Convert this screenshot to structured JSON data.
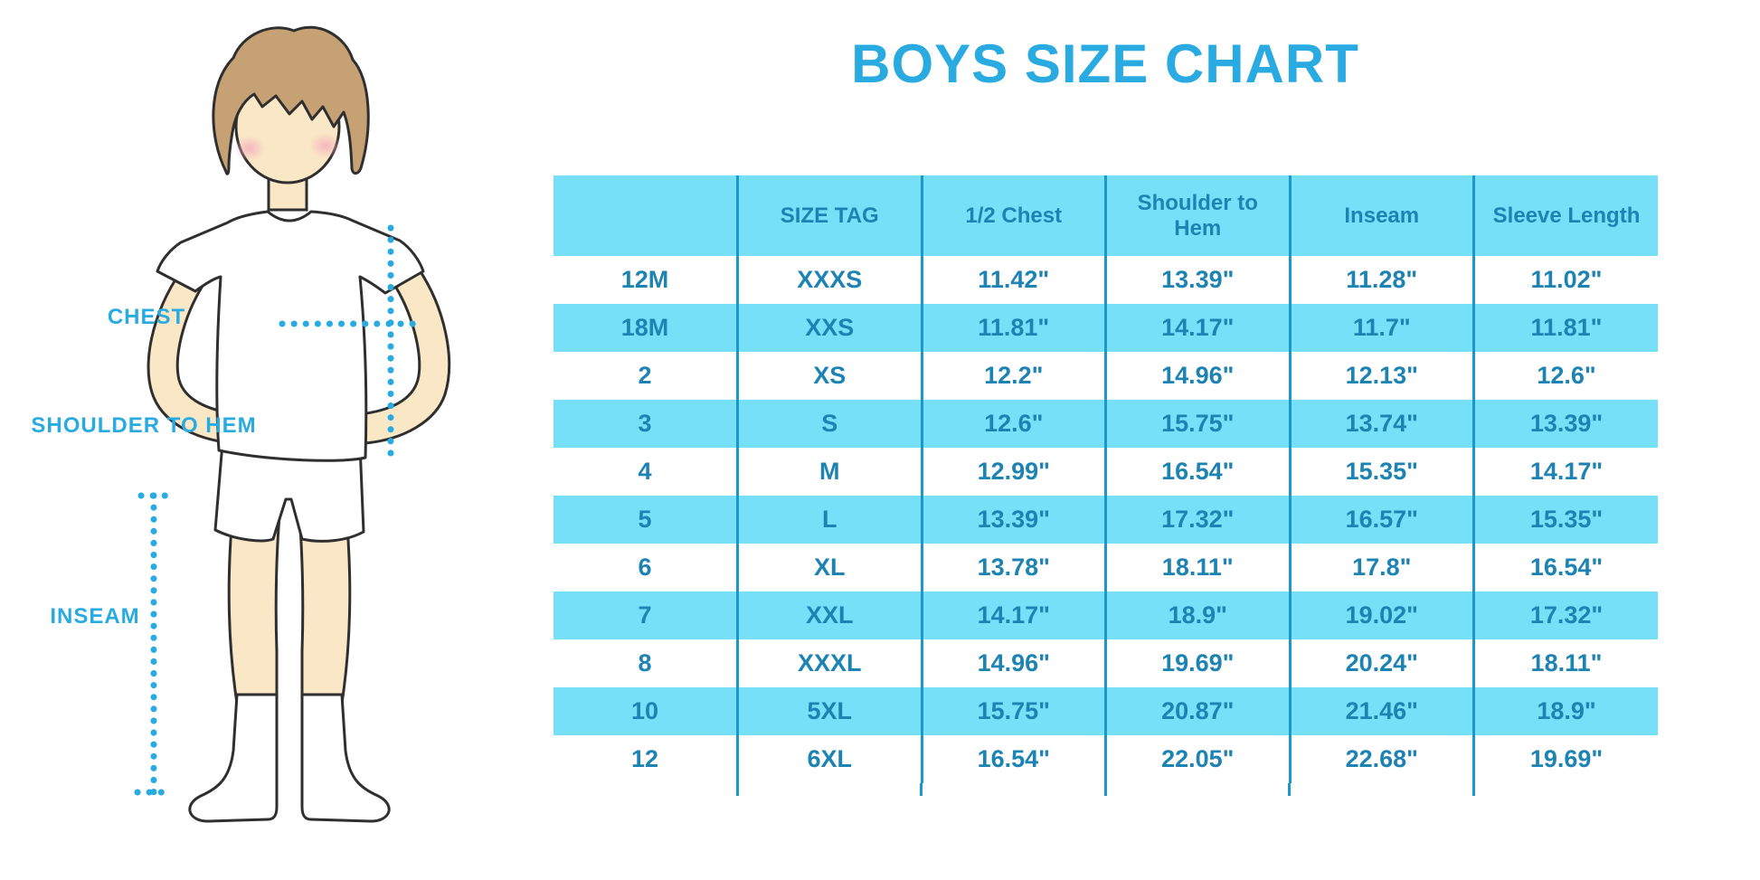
{
  "title": "BOYS SIZE CHART",
  "figure": {
    "alt": "cartoon boy in white t-shirt, white shorts and knee socks with dotted measurement lines",
    "labels": {
      "chest": "CHEST",
      "shoulder_to_hem": "SHOULDER TO HEM",
      "inseam": "INSEAM"
    }
  },
  "colors": {
    "accent": "#29ABE2",
    "table_band": "#75E0F8",
    "table_text": "#1D83B3",
    "table_divider": "#1B97CE",
    "skin": "#FAE7C5",
    "hair": "#C5A173",
    "outline": "#2F2F2F",
    "blush": "#F3AFBE"
  },
  "chart_data": {
    "type": "table",
    "title": "BOYS SIZE CHART",
    "columns": [
      "",
      "SIZE TAG",
      "1/2 Chest",
      "Shoulder to Hem",
      "Inseam",
      "Sleeve Length"
    ],
    "rows": [
      [
        "12M",
        "XXXS",
        "11.42\"",
        "13.39\"",
        "11.28\"",
        "11.02\""
      ],
      [
        "18M",
        "XXS",
        "11.81\"",
        "14.17\"",
        "11.7\"",
        "11.81\""
      ],
      [
        "2",
        "XS",
        "12.2\"",
        "14.96\"",
        "12.13\"",
        "12.6\""
      ],
      [
        "3",
        "S",
        "12.6\"",
        "15.75\"",
        "13.74\"",
        "13.39\""
      ],
      [
        "4",
        "M",
        "12.99\"",
        "16.54\"",
        "15.35\"",
        "14.17\""
      ],
      [
        "5",
        "L",
        "13.39\"",
        "17.32\"",
        "16.57\"",
        "15.35\""
      ],
      [
        "6",
        "XL",
        "13.78\"",
        "18.11\"",
        "17.8\"",
        "16.54\""
      ],
      [
        "7",
        "XXL",
        "14.17\"",
        "18.9\"",
        "19.02\"",
        "17.32\""
      ],
      [
        "8",
        "XXXL",
        "14.96\"",
        "19.69\"",
        "20.24\"",
        "18.11\""
      ],
      [
        "10",
        "5XL",
        "15.75\"",
        "20.87\"",
        "21.46\"",
        "18.9\""
      ],
      [
        "12",
        "6XL",
        "16.54\"",
        "22.05\"",
        "22.68\"",
        "19.69\""
      ]
    ],
    "units": "inches",
    "row_striping": "white / light-cyan alternating, header cyan",
    "grid": "vertical dividers only, no outer frame"
  }
}
